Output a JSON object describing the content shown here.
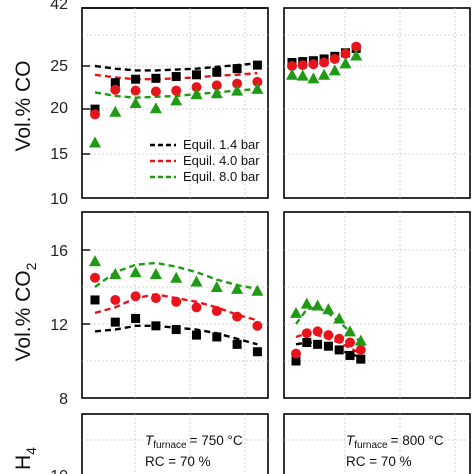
{
  "figure": {
    "annotations": [
      {
        "panel": "left",
        "t_symbol": "T",
        "t_sub": "furnace",
        "t_value": "= 750 °C",
        "rc": "RC = 70 %"
      },
      {
        "panel": "right",
        "t_symbol": "T",
        "t_sub": "furnace",
        "t_value": "= 800 °C",
        "rc": "RC = 70 %"
      }
    ],
    "legend": [
      {
        "label": "Equil. 1.4 bar",
        "color": "#000000"
      },
      {
        "label": "Equil. 4.0 bar",
        "color": "#e8141b"
      },
      {
        "label": "Equil. 8.0 bar",
        "color": "#1f9a13"
      }
    ]
  },
  "chart_data": [
    {
      "type": "scatter",
      "panel": "CO-left",
      "ylabel_text": "Vol.% ",
      "ylabel_species": "CO",
      "ylim": [
        10,
        42
      ],
      "yticks": [
        "10",
        "15",
        "20",
        "25",
        "42"
      ],
      "grid": true,
      "x": [
        1,
        2,
        3,
        4,
        5,
        6,
        7,
        8,
        9
      ],
      "series": [
        {
          "kind": "points",
          "marker": "square",
          "color": "#000000",
          "values": [
            20.1,
            23.1,
            23.5,
            23.6,
            23.8,
            24.0,
            24.3,
            24.7,
            25.1
          ]
        },
        {
          "kind": "points",
          "marker": "circle",
          "color": "#e8141b",
          "values": [
            19.5,
            22.3,
            22.2,
            22.1,
            22.2,
            22.6,
            22.8,
            23.0,
            23.2
          ]
        },
        {
          "kind": "points",
          "marker": "triangle",
          "color": "#1f9a13",
          "values": [
            16.3,
            19.8,
            20.8,
            20.2,
            21.1,
            21.8,
            21.9,
            22.2,
            22.4
          ]
        },
        {
          "kind": "line",
          "name": "Equil. 1.4 bar",
          "color": "#000000",
          "values": [
            25.0,
            24.7,
            24.5,
            24.5,
            24.6,
            24.7,
            24.9,
            25.1,
            25.3
          ]
        },
        {
          "kind": "line",
          "name": "Equil. 4.0 bar",
          "color": "#e8141b",
          "values": [
            24.0,
            23.7,
            23.5,
            23.5,
            23.6,
            23.7,
            23.9,
            24.0,
            24.2
          ]
        },
        {
          "kind": "line",
          "name": "Equil. 8.0 bar",
          "color": "#1f9a13",
          "values": [
            22.0,
            21.6,
            21.4,
            21.5,
            21.6,
            21.8,
            22.0,
            22.2,
            22.4
          ]
        }
      ]
    },
    {
      "type": "scatter",
      "panel": "CO-right",
      "ylim": [
        10,
        42
      ],
      "grid": true,
      "x": [
        1,
        2,
        3,
        4,
        5,
        6,
        7
      ],
      "series": [
        {
          "kind": "points",
          "marker": "square",
          "color": "#000000",
          "values": [
            25.4,
            25.5,
            25.6,
            25.8,
            26.1,
            26.5,
            27.0
          ]
        },
        {
          "kind": "points",
          "marker": "circle",
          "color": "#e8141b",
          "values": [
            25.0,
            25.1,
            25.2,
            25.4,
            25.8,
            26.4,
            27.2
          ]
        },
        {
          "kind": "points",
          "marker": "triangle",
          "color": "#1f9a13",
          "values": [
            24.0,
            23.9,
            23.6,
            24.0,
            24.5,
            25.3,
            26.2
          ]
        }
      ]
    },
    {
      "type": "scatter",
      "panel": "CO2-left",
      "ylabel_text": "Vol.% ",
      "ylabel_species": "CO",
      "ylabel_sub": "2",
      "ylim": [
        8,
        18
      ],
      "yticks": [
        "8",
        "12",
        "16"
      ],
      "grid": true,
      "x": [
        1,
        2,
        3,
        4,
        5,
        6,
        7,
        8,
        9
      ],
      "series": [
        {
          "kind": "points",
          "marker": "square",
          "color": "#000000",
          "values": [
            13.3,
            12.1,
            12.3,
            11.9,
            11.7,
            11.4,
            11.3,
            10.9,
            10.5
          ]
        },
        {
          "kind": "points",
          "marker": "circle",
          "color": "#e8141b",
          "values": [
            14.5,
            13.3,
            13.5,
            13.4,
            13.2,
            12.9,
            12.7,
            12.4,
            11.9
          ]
        },
        {
          "kind": "points",
          "marker": "triangle",
          "color": "#1f9a13",
          "values": [
            15.4,
            14.7,
            14.8,
            14.7,
            14.5,
            14.3,
            14.0,
            13.9,
            13.8
          ]
        },
        {
          "kind": "line",
          "name": "Equil. 1.4 bar",
          "color": "#000000",
          "values": [
            11.6,
            11.7,
            11.9,
            11.9,
            11.8,
            11.7,
            11.5,
            11.2,
            10.9
          ]
        },
        {
          "kind": "line",
          "name": "Equil. 4.0 bar",
          "color": "#e8141b",
          "values": [
            12.6,
            12.9,
            13.4,
            13.6,
            13.4,
            13.2,
            12.9,
            12.5,
            12.2
          ]
        },
        {
          "kind": "line",
          "name": "Equil. 8.0 bar",
          "color": "#1f9a13",
          "values": [
            14.0,
            14.8,
            15.2,
            15.3,
            15.1,
            14.8,
            14.4,
            14.1,
            13.9
          ]
        }
      ]
    },
    {
      "type": "scatter",
      "panel": "CO2-right",
      "ylim": [
        8,
        18
      ],
      "grid": true,
      "x": [
        1,
        2,
        3,
        4,
        5,
        6,
        7
      ],
      "series": [
        {
          "kind": "points",
          "marker": "square",
          "color": "#000000",
          "values": [
            10.0,
            11.0,
            10.9,
            10.8,
            10.6,
            10.3,
            10.1
          ]
        },
        {
          "kind": "points",
          "marker": "circle",
          "color": "#e8141b",
          "values": [
            10.4,
            11.5,
            11.6,
            11.4,
            11.2,
            11.0,
            10.6
          ]
        },
        {
          "kind": "points",
          "marker": "triangle",
          "color": "#1f9a13",
          "values": [
            12.6,
            13.1,
            13.0,
            12.8,
            12.3,
            11.6,
            11.1
          ]
        },
        {
          "kind": "line",
          "name": "Equil. 1.4 bar",
          "color": "#000000",
          "values": [
            10.9,
            11.0,
            11.0,
            10.8,
            10.6,
            10.4,
            10.2
          ]
        },
        {
          "kind": "line",
          "name": "Equil. 4.0 bar",
          "color": "#e8141b",
          "values": [
            11.3,
            11.5,
            11.4,
            11.2,
            11.0,
            10.7,
            10.4
          ]
        },
        {
          "kind": "line",
          "name": "Equil. 8.0 bar",
          "color": "#1f9a13",
          "values": [
            12.0,
            12.8,
            12.9,
            12.6,
            12.1,
            11.6,
            11.0
          ]
        }
      ]
    },
    {
      "type": "scatter",
      "panel": "CH4-partial",
      "ylabel_species": "H",
      "ylabel_sub": "4",
      "yticks": [
        "10"
      ],
      "grid": true,
      "series": []
    }
  ]
}
